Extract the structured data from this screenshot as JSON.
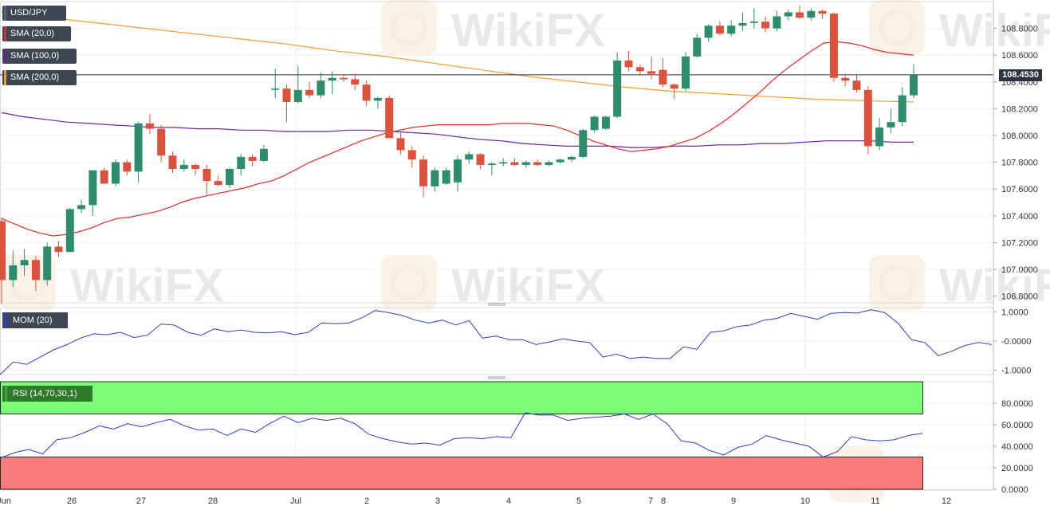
{
  "chart_data": [
    {
      "type": "candlestick",
      "symbol": "USD/JPY",
      "indicators": [
        {
          "name": "SMA (20,0)",
          "color": "#e02a2a"
        },
        {
          "name": "SMA (100,0)",
          "color": "#6a23a7"
        },
        {
          "name": "SMA (200,0)",
          "color": "#f59a2a"
        }
      ],
      "current_price": "108.4530",
      "colors": {
        "up": "#2e8b6e",
        "down": "#d9533e",
        "sma20": "#e02a2a",
        "sma100": "#6a23a7",
        "sma200": "#f59a2a",
        "price_line": "#2b3440"
      },
      "ylim": [
        106.75,
        109.0
      ],
      "yticks": [
        "108.8000",
        "108.6000",
        "108.4000",
        "108.2000",
        "108.0000",
        "107.8000",
        "107.6000",
        "107.4000",
        "107.2000",
        "107.0000",
        "106.8000"
      ],
      "x_labels": [
        "Jun",
        "26",
        "27",
        "28",
        "Jul",
        "2",
        "3",
        "4",
        "5",
        "7",
        "8",
        "9",
        "10",
        "11",
        "12"
      ],
      "candles": [
        {
          "o": 107.36,
          "h": 107.39,
          "l": 106.74,
          "c": 106.92
        },
        {
          "o": 106.92,
          "h": 107.14,
          "l": 106.87,
          "c": 107.03
        },
        {
          "o": 107.03,
          "h": 107.15,
          "l": 106.95,
          "c": 107.07
        },
        {
          "o": 107.07,
          "h": 107.1,
          "l": 106.84,
          "c": 106.92
        },
        {
          "o": 106.92,
          "h": 107.2,
          "l": 106.88,
          "c": 107.17
        },
        {
          "o": 107.17,
          "h": 107.21,
          "l": 107.09,
          "c": 107.13
        },
        {
          "o": 107.13,
          "h": 107.46,
          "l": 107.13,
          "c": 107.45
        },
        {
          "o": 107.45,
          "h": 107.52,
          "l": 107.42,
          "c": 107.48
        },
        {
          "o": 107.48,
          "h": 107.74,
          "l": 107.4,
          "c": 107.74
        },
        {
          "o": 107.74,
          "h": 107.76,
          "l": 107.66,
          "c": 107.64
        },
        {
          "o": 107.64,
          "h": 107.82,
          "l": 107.62,
          "c": 107.8
        },
        {
          "o": 107.8,
          "h": 107.82,
          "l": 107.7,
          "c": 107.73
        },
        {
          "o": 107.73,
          "h": 108.1,
          "l": 107.65,
          "c": 108.09
        },
        {
          "o": 108.09,
          "h": 108.16,
          "l": 108.01,
          "c": 108.05
        },
        {
          "o": 108.05,
          "h": 108.08,
          "l": 107.8,
          "c": 107.85
        },
        {
          "o": 107.85,
          "h": 107.88,
          "l": 107.72,
          "c": 107.75
        },
        {
          "o": 107.75,
          "h": 107.82,
          "l": 107.73,
          "c": 107.78
        },
        {
          "o": 107.78,
          "h": 107.79,
          "l": 107.7,
          "c": 107.75
        },
        {
          "o": 107.75,
          "h": 107.78,
          "l": 107.56,
          "c": 107.66
        },
        {
          "o": 107.66,
          "h": 107.7,
          "l": 107.62,
          "c": 107.63
        },
        {
          "o": 107.63,
          "h": 107.76,
          "l": 107.61,
          "c": 107.75
        },
        {
          "o": 107.75,
          "h": 107.86,
          "l": 107.7,
          "c": 107.84
        },
        {
          "o": 107.84,
          "h": 107.86,
          "l": 107.77,
          "c": 107.81
        },
        {
          "o": 107.81,
          "h": 107.93,
          "l": 107.8,
          "c": 107.9
        },
        {
          "o": 108.35,
          "h": 108.5,
          "l": 108.28,
          "c": 108.35
        },
        {
          "o": 108.35,
          "h": 108.38,
          "l": 108.1,
          "c": 108.25
        },
        {
          "o": 108.25,
          "h": 108.52,
          "l": 108.24,
          "c": 108.34
        },
        {
          "o": 108.34,
          "h": 108.4,
          "l": 108.28,
          "c": 108.3
        },
        {
          "o": 108.3,
          "h": 108.47,
          "l": 108.28,
          "c": 108.41
        },
        {
          "o": 108.41,
          "h": 108.48,
          "l": 108.31,
          "c": 108.43
        },
        {
          "o": 108.43,
          "h": 108.46,
          "l": 108.4,
          "c": 108.42
        },
        {
          "o": 108.42,
          "h": 108.46,
          "l": 108.34,
          "c": 108.38
        },
        {
          "o": 108.38,
          "h": 108.41,
          "l": 108.22,
          "c": 108.26
        },
        {
          "o": 108.26,
          "h": 108.29,
          "l": 108.2,
          "c": 108.28
        },
        {
          "o": 108.28,
          "h": 108.3,
          "l": 108.0,
          "c": 107.98
        },
        {
          "o": 107.98,
          "h": 108.02,
          "l": 107.86,
          "c": 107.89
        },
        {
          "o": 107.89,
          "h": 107.92,
          "l": 107.76,
          "c": 107.82
        },
        {
          "o": 107.82,
          "h": 107.85,
          "l": 107.54,
          "c": 107.62
        },
        {
          "o": 107.62,
          "h": 107.76,
          "l": 107.58,
          "c": 107.74
        },
        {
          "o": 107.64,
          "h": 107.76,
          "l": 107.63,
          "c": 107.74
        },
        {
          "o": 107.65,
          "h": 107.85,
          "l": 107.58,
          "c": 107.82
        },
        {
          "o": 107.82,
          "h": 107.88,
          "l": 107.79,
          "c": 107.86
        },
        {
          "o": 107.86,
          "h": 107.87,
          "l": 107.75,
          "c": 107.78
        },
        {
          "o": 107.78,
          "h": 107.8,
          "l": 107.7,
          "c": 107.79
        },
        {
          "o": 107.79,
          "h": 107.83,
          "l": 107.77,
          "c": 107.8
        },
        {
          "o": 107.8,
          "h": 107.83,
          "l": 107.77,
          "c": 107.78
        },
        {
          "o": 107.78,
          "h": 107.81,
          "l": 107.76,
          "c": 107.8
        },
        {
          "o": 107.8,
          "h": 107.82,
          "l": 107.77,
          "c": 107.78
        },
        {
          "o": 107.78,
          "h": 107.81,
          "l": 107.77,
          "c": 107.8
        },
        {
          "o": 107.8,
          "h": 107.83,
          "l": 107.79,
          "c": 107.82
        },
        {
          "o": 107.82,
          "h": 107.85,
          "l": 107.8,
          "c": 107.84
        },
        {
          "o": 107.84,
          "h": 108.05,
          "l": 107.83,
          "c": 108.04
        },
        {
          "o": 108.04,
          "h": 108.15,
          "l": 108.02,
          "c": 108.14
        },
        {
          "o": 108.05,
          "h": 108.15,
          "l": 108.04,
          "c": 108.14
        },
        {
          "o": 108.14,
          "h": 108.62,
          "l": 108.13,
          "c": 108.56
        },
        {
          "o": 108.56,
          "h": 108.63,
          "l": 108.48,
          "c": 108.51
        },
        {
          "o": 108.51,
          "h": 108.53,
          "l": 108.45,
          "c": 108.48
        },
        {
          "o": 108.48,
          "h": 108.59,
          "l": 108.42,
          "c": 108.46
        },
        {
          "o": 108.49,
          "h": 108.58,
          "l": 108.36,
          "c": 108.38
        },
        {
          "o": 108.38,
          "h": 108.39,
          "l": 108.27,
          "c": 108.35
        },
        {
          "o": 108.35,
          "h": 108.62,
          "l": 108.33,
          "c": 108.59
        },
        {
          "o": 108.59,
          "h": 108.76,
          "l": 108.58,
          "c": 108.73
        },
        {
          "o": 108.73,
          "h": 108.83,
          "l": 108.7,
          "c": 108.82
        },
        {
          "o": 108.82,
          "h": 108.85,
          "l": 108.75,
          "c": 108.76
        },
        {
          "o": 108.76,
          "h": 108.86,
          "l": 108.74,
          "c": 108.82
        },
        {
          "o": 108.82,
          "h": 108.92,
          "l": 108.78,
          "c": 108.84
        },
        {
          "o": 108.84,
          "h": 108.95,
          "l": 108.8,
          "c": 108.85
        },
        {
          "o": 108.85,
          "h": 108.89,
          "l": 108.77,
          "c": 108.8
        },
        {
          "o": 108.8,
          "h": 108.93,
          "l": 108.78,
          "c": 108.89
        },
        {
          "o": 108.89,
          "h": 108.94,
          "l": 108.86,
          "c": 108.92
        },
        {
          "o": 108.92,
          "h": 108.97,
          "l": 108.87,
          "c": 108.88
        },
        {
          "o": 108.88,
          "h": 108.95,
          "l": 108.86,
          "c": 108.93
        },
        {
          "o": 108.93,
          "h": 108.94,
          "l": 108.87,
          "c": 108.91
        },
        {
          "o": 108.91,
          "h": 108.92,
          "l": 108.4,
          "c": 108.43
        },
        {
          "o": 108.43,
          "h": 108.46,
          "l": 108.37,
          "c": 108.41
        },
        {
          "o": 108.41,
          "h": 108.46,
          "l": 108.32,
          "c": 108.34
        },
        {
          "o": 108.34,
          "h": 108.37,
          "l": 107.86,
          "c": 107.92
        },
        {
          "o": 107.92,
          "h": 108.13,
          "l": 107.89,
          "c": 108.06
        },
        {
          "o": 108.06,
          "h": 108.2,
          "l": 108.02,
          "c": 108.1
        },
        {
          "o": 108.1,
          "h": 108.36,
          "l": 108.07,
          "c": 108.3
        },
        {
          "o": 108.3,
          "h": 108.53,
          "l": 108.28,
          "c": 108.45
        }
      ],
      "sma20": [
        107.38,
        107.34,
        107.3,
        107.27,
        107.25,
        107.26,
        107.28,
        107.31,
        107.35,
        107.38,
        107.39,
        107.41,
        107.43,
        107.46,
        107.5,
        107.53,
        107.55,
        107.57,
        107.59,
        107.61,
        107.64,
        107.66,
        107.7,
        107.75,
        107.8,
        107.84,
        107.88,
        107.92,
        107.96,
        107.99,
        108.02,
        108.04,
        108.06,
        108.07,
        108.08,
        108.08,
        108.08,
        108.08,
        108.08,
        108.09,
        108.09,
        108.09,
        108.08,
        108.07,
        108.04,
        108.0,
        107.96,
        107.93,
        107.9,
        107.88,
        107.89,
        107.9,
        107.92,
        107.95,
        107.98,
        108.03,
        108.09,
        108.16,
        108.24,
        108.32,
        108.41,
        108.49,
        108.56,
        108.63,
        108.69,
        108.7,
        108.69,
        108.67,
        108.64,
        108.62,
        108.61,
        108.6
      ],
      "sma100": [
        108.17,
        108.14,
        108.12,
        108.1,
        108.09,
        108.08,
        108.07,
        108.06,
        108.06,
        108.05,
        108.05,
        108.04,
        108.04,
        108.03,
        108.03,
        108.03,
        108.04,
        108.04,
        108.03,
        108.02,
        108.01,
        107.99,
        107.97,
        107.96,
        107.94,
        107.93,
        107.92,
        107.92,
        107.92,
        107.91,
        107.91,
        107.92,
        107.92,
        107.93,
        107.93,
        107.94,
        107.94,
        107.95,
        107.96,
        107.96,
        107.96,
        107.95,
        107.95
      ],
      "sma200": [
        108.92,
        108.88,
        108.84,
        108.8,
        108.76,
        108.72,
        108.68,
        108.63,
        108.59,
        108.54,
        108.49,
        108.44,
        108.4,
        108.36,
        108.33,
        108.31,
        108.29,
        108.27,
        108.26,
        108.25
      ]
    },
    {
      "type": "line",
      "name": "MOM (20)",
      "ylim": [
        -1.15,
        1.15
      ],
      "yticks": [
        "1.0000",
        "-0.0000",
        "-1.0000"
      ],
      "values": [
        -1.15,
        -0.72,
        -0.8,
        -0.55,
        -0.3,
        -0.12,
        0.1,
        0.25,
        0.22,
        0.3,
        0.12,
        0.2,
        0.58,
        0.55,
        0.3,
        0.2,
        0.42,
        0.32,
        0.38,
        0.3,
        0.28,
        0.32,
        0.22,
        0.3,
        0.62,
        0.6,
        0.62,
        0.8,
        1.05,
        0.98,
        0.88,
        0.72,
        0.62,
        0.72,
        0.55,
        0.7,
        0.1,
        0.17,
        0.05,
        0.05,
        -0.12,
        -0.03,
        0.08,
        0.0,
        -0.05,
        -0.55,
        -0.45,
        -0.6,
        -0.55,
        -0.6,
        -0.6,
        -0.2,
        -0.28,
        0.3,
        0.35,
        0.5,
        0.55,
        0.72,
        0.78,
        0.95,
        0.85,
        0.75,
        0.95,
        0.98,
        0.96,
        1.08,
        0.98,
        0.62,
        0.05,
        -0.05,
        -0.5,
        -0.35,
        -0.15,
        -0.05,
        -0.12
      ]
    },
    {
      "type": "line",
      "name": "RSI (14,70,30,1)",
      "ylim": [
        0,
        100
      ],
      "bands": {
        "upper": 70,
        "lower": 30
      },
      "yticks": [
        "80.0000",
        "60.0000",
        "40.0000",
        "20.0000",
        "0.0000"
      ],
      "values": [
        29,
        34,
        37,
        33,
        46,
        48,
        53,
        59,
        56,
        61,
        58,
        62,
        65,
        59,
        55,
        56,
        50,
        56,
        53,
        61,
        68,
        62,
        66,
        64,
        66,
        61,
        51,
        47,
        44,
        42,
        43,
        41,
        47,
        48,
        47,
        49,
        48,
        71,
        69,
        69,
        64,
        66,
        67,
        68,
        70,
        65,
        70,
        61,
        45,
        43,
        36,
        32,
        39,
        42,
        50,
        46,
        43,
        40,
        30,
        35,
        49,
        46,
        45,
        46,
        50,
        52
      ]
    }
  ]
}
